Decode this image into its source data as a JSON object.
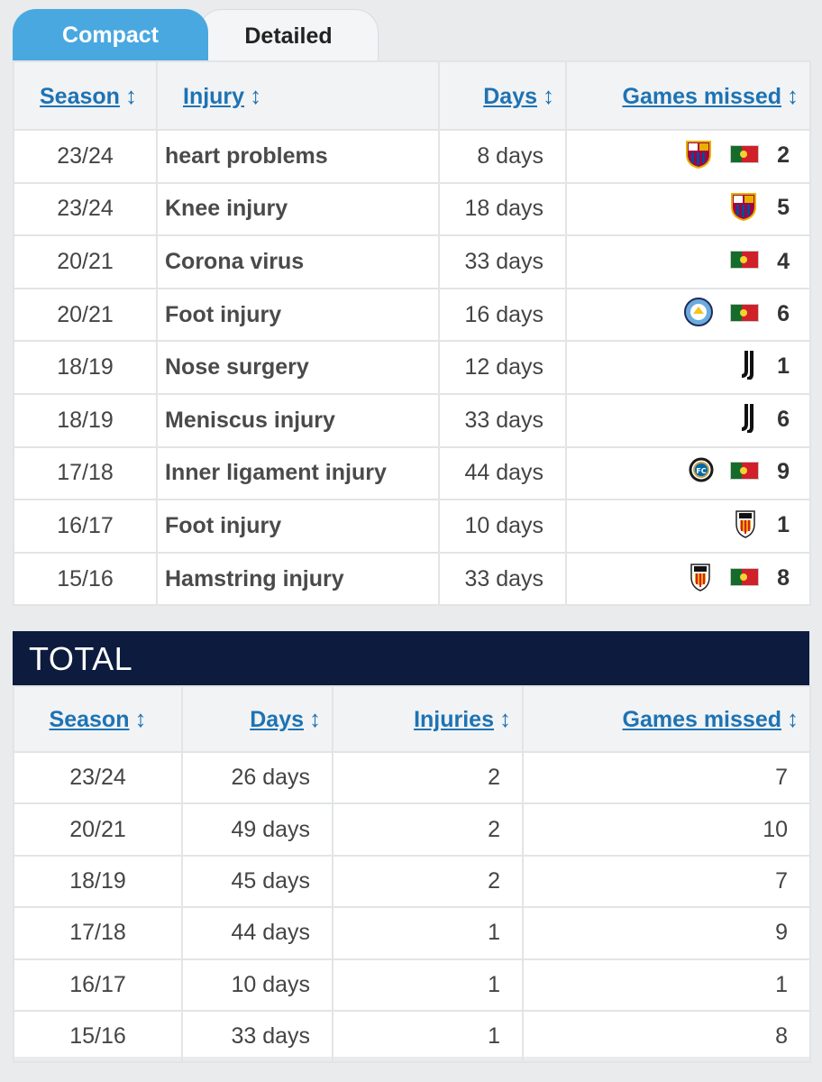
{
  "tabs": {
    "compact": "Compact",
    "detailed": "Detailed"
  },
  "injury_table": {
    "headers": {
      "season": "Season",
      "injury": "Injury",
      "days": "Days",
      "games": "Games missed"
    },
    "sort_glyph": "↕",
    "rows": [
      {
        "season": "23/24",
        "injury": "heart problems",
        "days": "8 days",
        "games": "2",
        "icons": [
          "barcelona-crest",
          "portugal-flag"
        ]
      },
      {
        "season": "23/24",
        "injury": "Knee injury",
        "days": "18 days",
        "games": "5",
        "icons": [
          "barcelona-crest"
        ]
      },
      {
        "season": "20/21",
        "injury": "Corona virus",
        "days": "33 days",
        "games": "4",
        "icons": [
          "portugal-flag"
        ]
      },
      {
        "season": "20/21",
        "injury": "Foot injury",
        "days": "16 days",
        "games": "6",
        "icons": [
          "man-city-crest",
          "portugal-flag"
        ]
      },
      {
        "season": "18/19",
        "injury": "Nose surgery",
        "days": "12 days",
        "games": "1",
        "icons": [
          "juventus-crest"
        ]
      },
      {
        "season": "18/19",
        "injury": "Meniscus injury",
        "days": "33 days",
        "games": "6",
        "icons": [
          "juventus-crest"
        ]
      },
      {
        "season": "17/18",
        "injury": "Inner ligament injury",
        "days": "44 days",
        "games": "9",
        "icons": [
          "inter-crest",
          "portugal-flag"
        ]
      },
      {
        "season": "16/17",
        "injury": "Foot injury",
        "days": "10 days",
        "games": "1",
        "icons": [
          "valencia-crest"
        ]
      },
      {
        "season": "15/16",
        "injury": "Hamstring injury",
        "days": "33 days",
        "games": "8",
        "icons": [
          "valencia-crest",
          "portugal-flag"
        ]
      }
    ]
  },
  "total": {
    "title": "TOTAL",
    "headers": {
      "season": "Season",
      "days": "Days",
      "injuries": "Injuries",
      "games": "Games missed"
    },
    "rows": [
      {
        "season": "23/24",
        "days": "26 days",
        "injuries": "2",
        "games": "7"
      },
      {
        "season": "20/21",
        "days": "49 days",
        "injuries": "2",
        "games": "10"
      },
      {
        "season": "18/19",
        "days": "45 days",
        "injuries": "2",
        "games": "7"
      },
      {
        "season": "17/18",
        "days": "44 days",
        "injuries": "1",
        "games": "9"
      },
      {
        "season": "16/17",
        "days": "10 days",
        "injuries": "1",
        "games": "1"
      },
      {
        "season": "15/16",
        "days": "33 days",
        "injuries": "1",
        "games": "8"
      }
    ]
  },
  "colors": {
    "accent": "#4aa8e0",
    "link": "#1d73b4",
    "total_bar": "#0c1b3e"
  }
}
